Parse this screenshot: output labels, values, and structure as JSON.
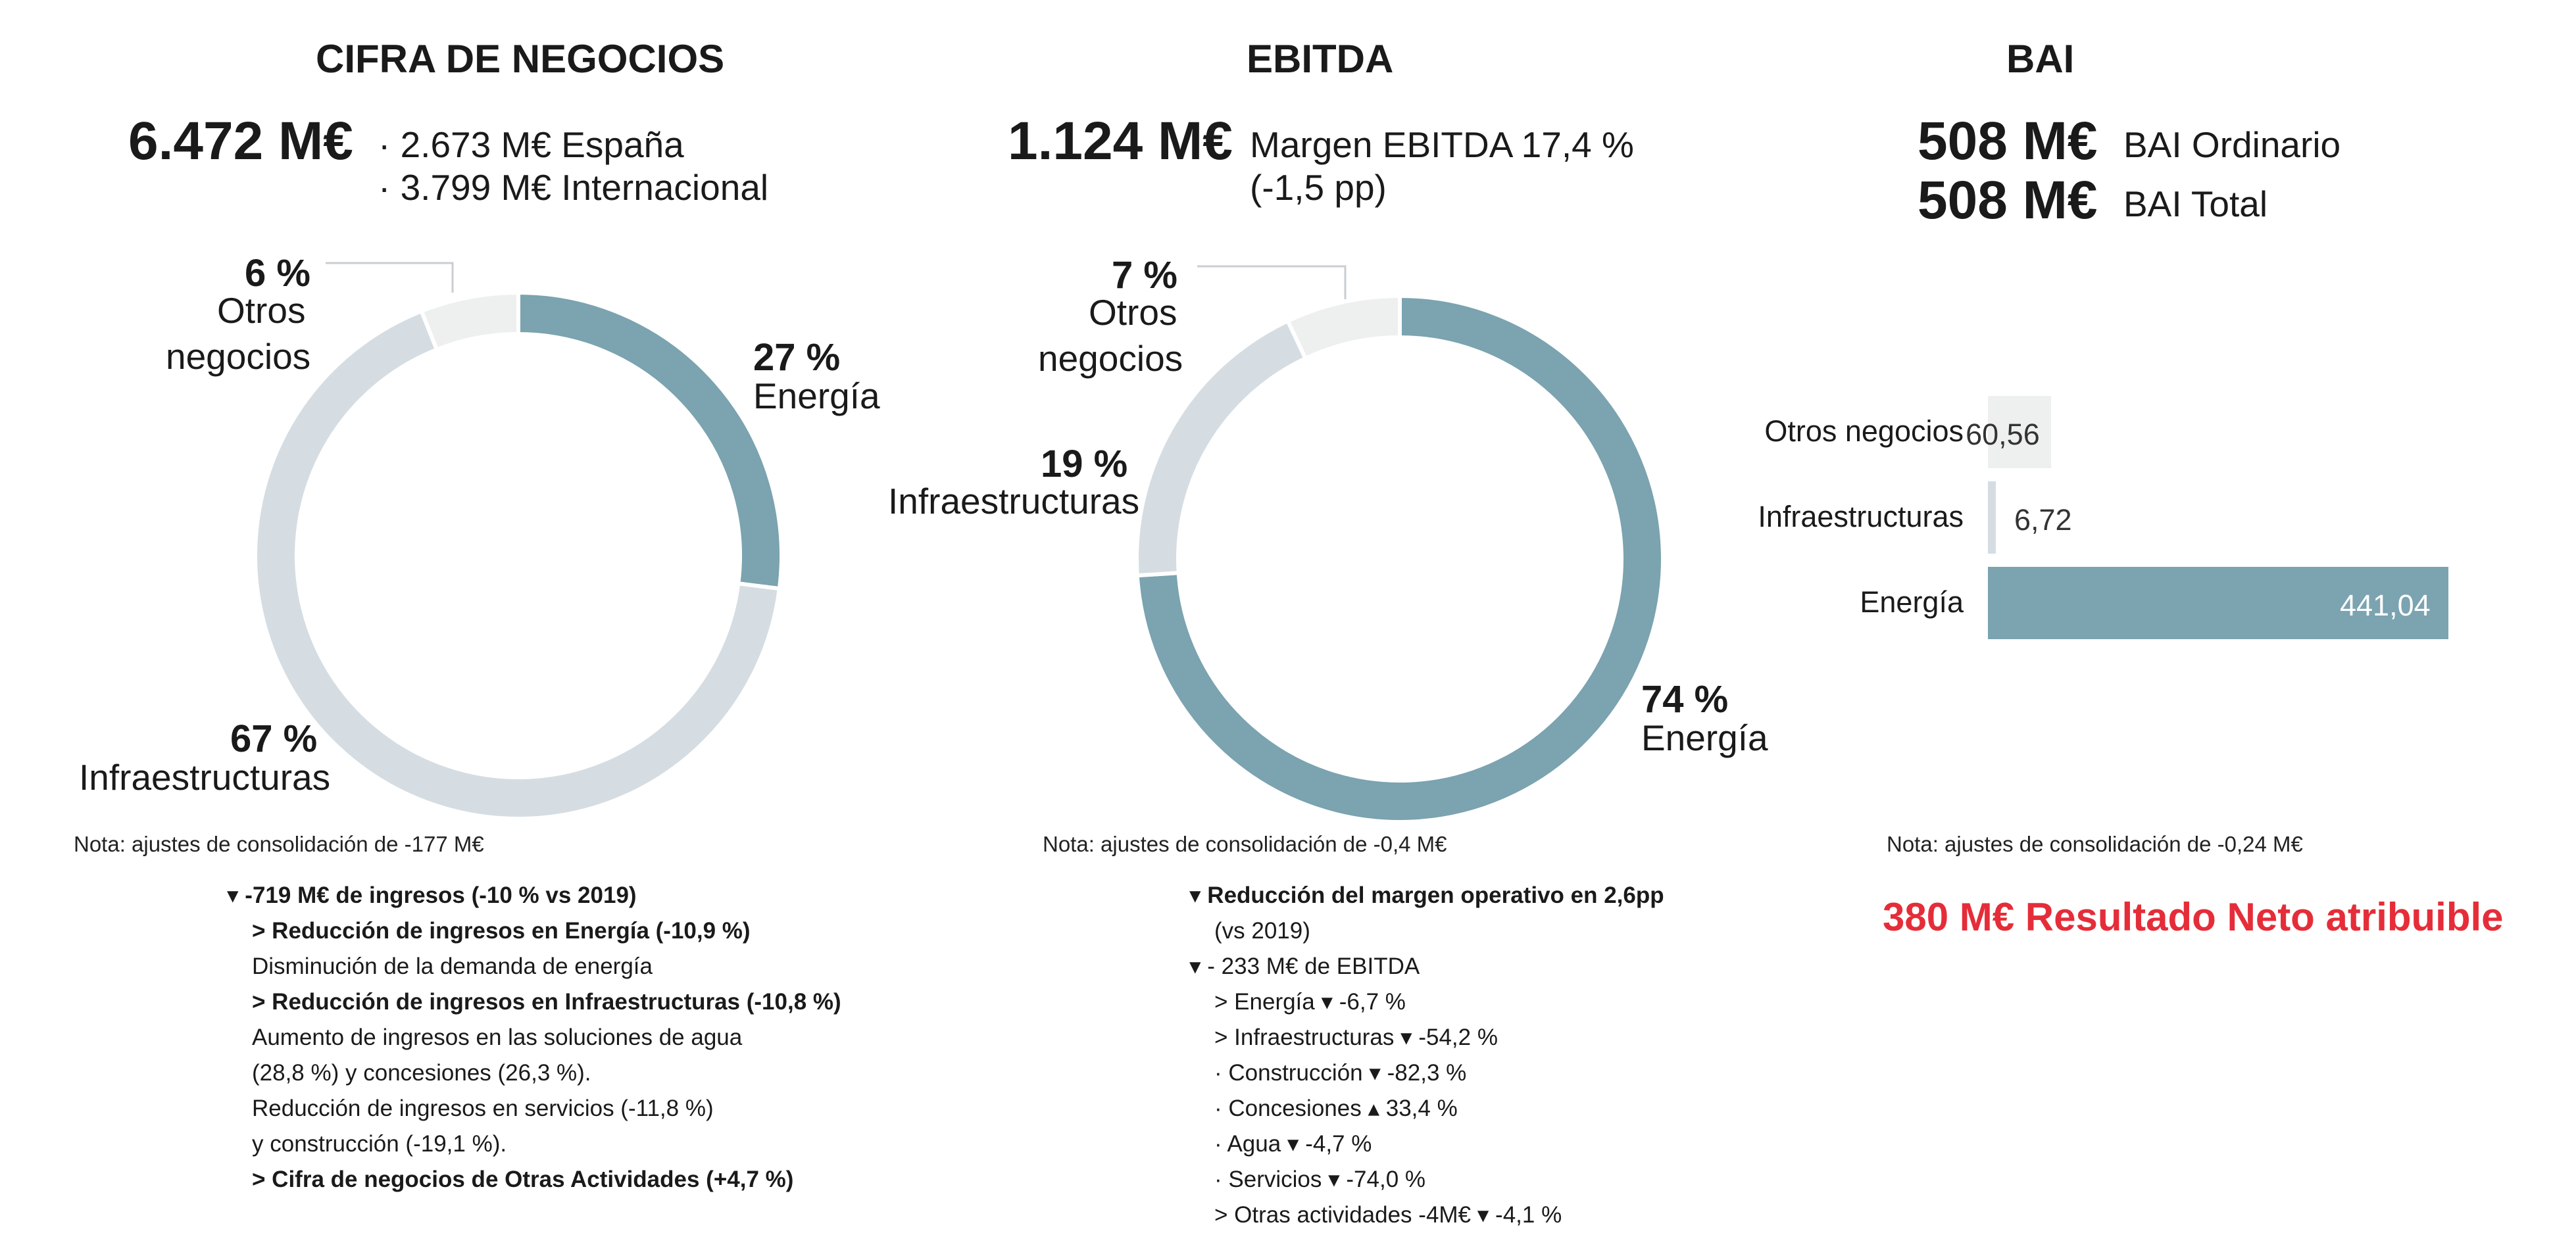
{
  "cifra": {
    "title": "CIFRA DE NEGOCIOS",
    "total": "6.472 M€",
    "spain": "· 2.673 M€ España",
    "intl": "· 3.799 M€ Internacional",
    "note": "Nota: ajustes de consolidación de -177 M€",
    "labels": {
      "energia_pct": "27 %",
      "energia": "Energía",
      "infra_pct": "67 %",
      "infra": "Infraestructuras",
      "otros_pct": "6 %",
      "otros_1": "Otros",
      "otros_2": "negocios"
    },
    "details": [
      {
        "text": "-719 M€ de ingresos (-10 % vs 2019)",
        "bold": true,
        "bullet": "▾"
      },
      {
        "text": "> Reducción de ingresos en Energía (-10,9 %)",
        "bold": true
      },
      {
        "text": "Disminución de la demanda de energía",
        "bold": false
      },
      {
        "text": "> Reducción de ingresos en Infraestructuras (-10,8 %)",
        "bold": true
      },
      {
        "text": "Aumento de ingresos en las soluciones de agua",
        "bold": false
      },
      {
        "text": "(28,8 %) y concesiones (26,3 %).",
        "bold": false
      },
      {
        "text": "Reducción de ingresos en servicios (-11,8 %)",
        "bold": false
      },
      {
        "text": "y construcción (-19,1 %).",
        "bold": false
      },
      {
        "text": "> Cifra de negocios de Otras Actividades (+4,7 %)",
        "bold": true
      }
    ]
  },
  "ebitda": {
    "title": "EBITDA",
    "total": "1.124 M€",
    "margin": "Margen EBITDA 17,4 %",
    "margin_change": "(-1,5 pp)",
    "note": "Nota: ajustes de consolidación de -0,4 M€",
    "labels": {
      "energia_pct": "74 %",
      "energia": "Energía",
      "infra_pct": "19 %",
      "infra": "Infraestructuras",
      "otros_pct": "7 %",
      "otros_1": "Otros",
      "otros_2": "negocios"
    },
    "details": [
      {
        "text": "Reducción del margen operativo en 2,6pp",
        "bold": true,
        "bullet": "▾"
      },
      {
        "text": "(vs 2019)",
        "bold": false
      },
      {
        "text": "- 233 M€ de EBITDA",
        "bold": false,
        "bullet": "▾"
      },
      {
        "text": "> Energía ▾ -6,7 %",
        "bold": false
      },
      {
        "text": "> Infraestructuras ▾ -54,2 %",
        "bold": false
      },
      {
        "text": "· Construcción ▾ -82,3 %",
        "bold": false
      },
      {
        "text": "· Concesiones ▴ 33,4 %",
        "bold": false
      },
      {
        "text": "· Agua ▾ -4,7 %",
        "bold": false
      },
      {
        "text": "· Servicios ▾ -74,0 %",
        "bold": false
      },
      {
        "text": "> Otras actividades  -4M€ ▾ -4,1 %",
        "bold": false
      }
    ]
  },
  "bai": {
    "title": "BAI",
    "ordinario_val": "508 M€",
    "ordinario_lbl": "BAI Ordinario",
    "total_val": "508 M€",
    "total_lbl": "BAI Total",
    "note": "Nota: ajustes de consolidación de -0,24 M€",
    "resultado": "380 M€ Resultado Neto atribuible"
  },
  "colors": {
    "energia": "#7ba3b0",
    "infra": "#d5dde3",
    "otros": "#eef0ef",
    "red": "#e52d39"
  },
  "chart_data": [
    {
      "type": "pie",
      "title": "CIFRA DE NEGOCIOS",
      "categories": [
        "Energía",
        "Infraestructuras",
        "Otros negocios"
      ],
      "values": [
        27,
        67,
        6
      ]
    },
    {
      "type": "pie",
      "title": "EBITDA",
      "categories": [
        "Energía",
        "Infraestructuras",
        "Otros negocios"
      ],
      "values": [
        74,
        19,
        7
      ]
    },
    {
      "type": "bar",
      "title": "BAI",
      "orientation": "horizontal",
      "categories": [
        "Otros negocios",
        "Infraestructuras",
        "Energía"
      ],
      "values": [
        60.56,
        6.72,
        441.04
      ],
      "value_labels": [
        "60,56",
        "6,72",
        "441,04"
      ]
    }
  ]
}
